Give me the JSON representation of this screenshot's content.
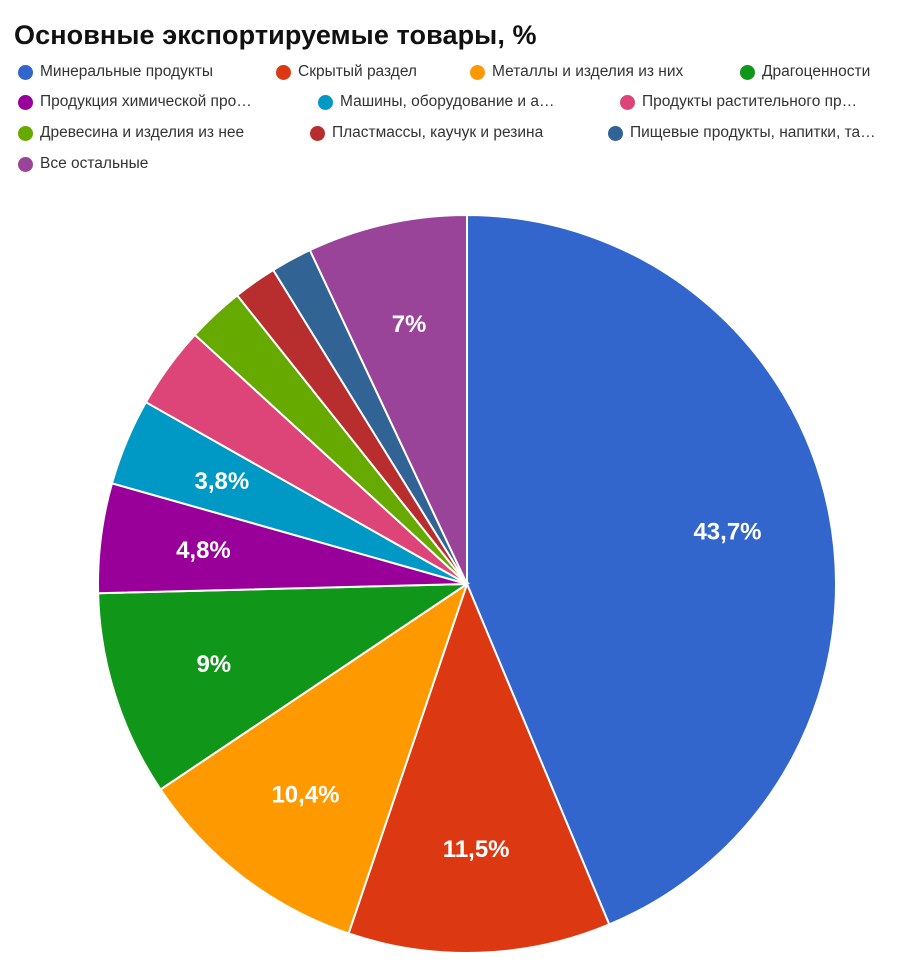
{
  "chart_data": {
    "type": "pie",
    "title": "Основные экспортируемые товары, %",
    "categories": [
      "Минеральные продукты",
      "Скрытый раздел",
      "Металлы и изделия из них",
      "Драгоценности",
      "Продукция химической про…",
      "Машины, оборудование и а…",
      "Продукты растительного пр…",
      "Древесина и изделия из нее",
      "Пластмассы, каучук и резина",
      "Пищевые продукты, напитки, та…",
      "Все остальные"
    ],
    "values": [
      43.7,
      11.5,
      10.4,
      9,
      4.8,
      3.8,
      3.6,
      2.5,
      1.9,
      1.8,
      7
    ],
    "data_labels": [
      "43,7%",
      "11,5%",
      "10,4%",
      "9%",
      "4,8%",
      "3,8%",
      "",
      "",
      "",
      "",
      "7%"
    ],
    "colors": [
      "#3366cc",
      "#dc3912",
      "#ff9900",
      "#109618",
      "#990099",
      "#0099c6",
      "#dd4477",
      "#66aa00",
      "#b82e2e",
      "#316395",
      "#994499"
    ],
    "legend_position": "top",
    "start_angle_deg": 0,
    "direction": "clockwise"
  }
}
